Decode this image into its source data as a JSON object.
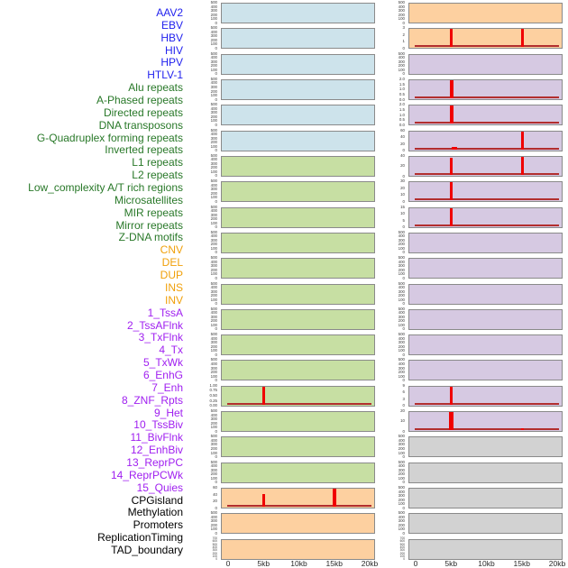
{
  "figure": {
    "description": "Genomic feature track small-multiples plot, 44 tracks in 2 columns of 22 panels, signal over a 0-20kb window",
    "layout": {
      "columns": 2,
      "rows_per_column": 22,
      "track_order": "left column top-to-bottom, then right column top-to-bottom"
    }
  },
  "colors": {
    "background": "#FFFFFF",
    "label": {
      "virus": "#2222EE",
      "repeat": "#287828",
      "sv": "#F0A00A",
      "chromatin": "#A020F0",
      "other": "#000000"
    },
    "panel_bg": {
      "virus": "#CDE3EB",
      "repeat": "#C7DFA3",
      "sv": "#FDD0A0",
      "chromatin": "#D6C9E2",
      "other": "#D2D2D2"
    },
    "panel_border": "#8A8A8A",
    "baseline": "#B22E2E",
    "spike": "#F00000",
    "tick_text": "#3A3A3A",
    "x_axis_text": "#2A2A2A"
  },
  "chart_data": {
    "type": "bar",
    "title": "",
    "xlabel": "",
    "ylabel": "",
    "x_axis": {
      "ticks": [
        "0",
        "5kb",
        "10kb",
        "15kb",
        "20kb"
      ],
      "range_kb": [
        0,
        20
      ],
      "shown_under_each_column": true
    },
    "ytick_sets": {
      "d6": [
        "500",
        "400",
        "300",
        "200",
        "100",
        "0"
      ],
      "p1": [
        "1.00",
        "0.75",
        "0.50",
        "0.25",
        "0.00"
      ],
      "c60": [
        "60",
        "40",
        "20",
        "0"
      ],
      "v3": [
        "3",
        "2",
        "1",
        "0"
      ],
      "p2": [
        "2.0",
        "1.5",
        "1.0",
        "0.5",
        "0.0"
      ],
      "w40": [
        "40",
        "20",
        "0"
      ],
      "e30": [
        "30",
        "20",
        "10",
        "0"
      ],
      "e15": [
        "15",
        "10",
        "5",
        "0"
      ],
      "r9": [
        "9",
        "6",
        "3",
        "0"
      ],
      "q20": [
        "20",
        "10",
        "0"
      ],
      "dense": [
        "700",
        "600",
        "500",
        "400",
        "300",
        "200",
        "100",
        "0"
      ]
    },
    "tracks": [
      {
        "name": "AAV2",
        "group": "virus",
        "yticks": "d6",
        "line": false,
        "spikes": []
      },
      {
        "name": "EBV",
        "group": "virus",
        "yticks": "d6",
        "line": false,
        "spikes": []
      },
      {
        "name": "HBV",
        "group": "virus",
        "yticks": "d6",
        "line": false,
        "spikes": []
      },
      {
        "name": "HIV",
        "group": "virus",
        "yticks": "d6",
        "line": false,
        "spikes": []
      },
      {
        "name": "HPV",
        "group": "virus",
        "yticks": "d6",
        "line": false,
        "spikes": []
      },
      {
        "name": "HTLV-1",
        "group": "virus",
        "yticks": "d6",
        "line": false,
        "spikes": []
      },
      {
        "name": "Alu repeats",
        "group": "repeat",
        "yticks": "d6",
        "line": false,
        "spikes": []
      },
      {
        "name": "A-Phased repeats",
        "group": "repeat",
        "yticks": "d6",
        "line": false,
        "spikes": []
      },
      {
        "name": "Directed repeats",
        "group": "repeat",
        "yticks": "d6",
        "line": false,
        "spikes": []
      },
      {
        "name": "DNA transposons",
        "group": "repeat",
        "yticks": "d6",
        "line": false,
        "spikes": []
      },
      {
        "name": "G-Quadruplex forming repeats",
        "group": "repeat",
        "yticks": "d6",
        "line": false,
        "spikes": []
      },
      {
        "name": "Inverted repeats",
        "group": "repeat",
        "yticks": "d6",
        "line": false,
        "spikes": []
      },
      {
        "name": "L1 repeats",
        "group": "repeat",
        "yticks": "d6",
        "line": false,
        "spikes": []
      },
      {
        "name": "L2 repeats",
        "group": "repeat",
        "yticks": "d6",
        "line": false,
        "spikes": []
      },
      {
        "name": "Low_complexity A/T rich regions",
        "group": "repeat",
        "yticks": "d6",
        "line": false,
        "spikes": []
      },
      {
        "name": "Microsatellites",
        "group": "repeat",
        "yticks": "p1",
        "line": true,
        "spikes": [
          {
            "kb": 5,
            "v": 1.05,
            "w": 3
          }
        ]
      },
      {
        "name": "MIR repeats",
        "group": "repeat",
        "yticks": "d6",
        "line": false,
        "spikes": []
      },
      {
        "name": "Mirror repeats",
        "group": "repeat",
        "yticks": "d6",
        "line": false,
        "spikes": []
      },
      {
        "name": "Z-DNA motifs",
        "group": "repeat",
        "yticks": "d6",
        "line": false,
        "spikes": []
      },
      {
        "name": "CNV",
        "group": "sv",
        "yticks": "c60",
        "line": true,
        "spikes": [
          {
            "kb": 5,
            "v": 45,
            "w": 3
          },
          {
            "kb": 15,
            "v": 64,
            "w": 4
          }
        ]
      },
      {
        "name": "DEL",
        "group": "sv",
        "yticks": "d6",
        "line": false,
        "spikes": []
      },
      {
        "name": "DUP",
        "group": "sv",
        "yticks": "dense",
        "line": false,
        "spikes": []
      },
      {
        "name": "INS",
        "group": "sv",
        "yticks": "d6",
        "line": false,
        "spikes": []
      },
      {
        "name": "INV",
        "group": "sv",
        "yticks": "v3",
        "line": true,
        "spikes": [
          {
            "kb": 5,
            "v": 3.2,
            "w": 3
          },
          {
            "kb": 15,
            "v": 3.2,
            "w": 3
          }
        ]
      },
      {
        "name": "1_TssA",
        "group": "chromatin",
        "yticks": "d6",
        "line": false,
        "spikes": []
      },
      {
        "name": "2_TssAFlnk",
        "group": "chromatin",
        "yticks": "p2",
        "line": true,
        "spikes": [
          {
            "kb": 5,
            "v": 2.1,
            "w": 4
          }
        ]
      },
      {
        "name": "3_TxFlnk",
        "group": "chromatin",
        "yticks": "p2",
        "line": true,
        "spikes": [
          {
            "kb": 5,
            "v": 2.1,
            "w": 4
          }
        ]
      },
      {
        "name": "4_Tx",
        "group": "chromatin",
        "yticks": "c60",
        "line": true,
        "spikes": [
          {
            "kb": 5.4,
            "v": 8,
            "w": 6
          },
          {
            "kb": 15,
            "v": 64,
            "w": 3
          }
        ]
      },
      {
        "name": "5_TxWk",
        "group": "chromatin",
        "yticks": "w40",
        "line": true,
        "spikes": [
          {
            "kb": 5,
            "v": 40,
            "w": 3
          },
          {
            "kb": 15,
            "v": 47,
            "w": 3
          }
        ]
      },
      {
        "name": "6_EnhG",
        "group": "chromatin",
        "yticks": "e30",
        "line": true,
        "spikes": [
          {
            "kb": 5,
            "v": 32,
            "w": 3
          }
        ]
      },
      {
        "name": "7_Enh",
        "group": "chromatin",
        "yticks": "e15",
        "line": true,
        "spikes": [
          {
            "kb": 5,
            "v": 16,
            "w": 3
          }
        ]
      },
      {
        "name": "8_ZNF_Rpts",
        "group": "chromatin",
        "yticks": "d6",
        "line": false,
        "spikes": []
      },
      {
        "name": "9_Het",
        "group": "chromatin",
        "yticks": "d6",
        "line": false,
        "spikes": []
      },
      {
        "name": "10_TssBiv",
        "group": "chromatin",
        "yticks": "d6",
        "line": false,
        "spikes": []
      },
      {
        "name": "11_BivFlnk",
        "group": "chromatin",
        "yticks": "d6",
        "line": false,
        "spikes": []
      },
      {
        "name": "12_EnhBiv",
        "group": "chromatin",
        "yticks": "d6",
        "line": false,
        "spikes": []
      },
      {
        "name": "13_ReprPC",
        "group": "chromatin",
        "yticks": "d6",
        "line": false,
        "spikes": []
      },
      {
        "name": "14_ReprPCWk",
        "group": "chromatin",
        "yticks": "r9",
        "line": true,
        "spikes": [
          {
            "kb": 5,
            "v": 9.6,
            "w": 3
          }
        ]
      },
      {
        "name": "15_Quies",
        "group": "chromatin",
        "yticks": "q20",
        "line": true,
        "spikes": [
          {
            "kb": 5,
            "v": 21.2,
            "w": 5
          },
          {
            "kb": 15,
            "v": 2.5,
            "w": 3
          }
        ]
      },
      {
        "name": "CPGisland",
        "group": "other",
        "yticks": "d6",
        "line": false,
        "spikes": []
      },
      {
        "name": "Methylation",
        "group": "other",
        "yticks": "d6",
        "line": false,
        "spikes": []
      },
      {
        "name": "Promoters",
        "group": "other",
        "yticks": "d6",
        "line": false,
        "spikes": []
      },
      {
        "name": "ReplicationTiming",
        "group": "other",
        "yticks": "d6",
        "line": false,
        "spikes": []
      },
      {
        "name": "TAD_boundary",
        "group": "other",
        "yticks": "dense",
        "line": false,
        "spikes": []
      }
    ]
  }
}
